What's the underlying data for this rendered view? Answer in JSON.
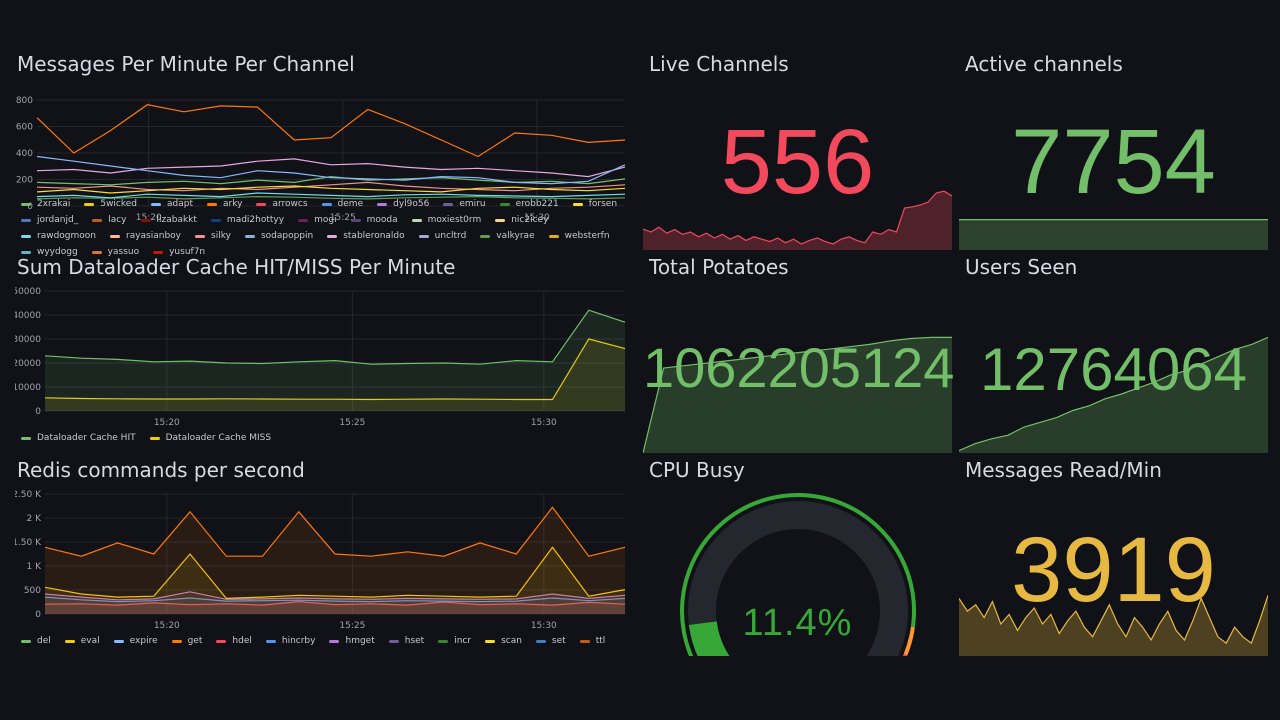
{
  "colors": {
    "bg": "#111217",
    "grid": "#24262e",
    "axis_text": "#a0a2ad",
    "red": "#f2495c",
    "green": "#73bf69",
    "yellow": "#f2cc0c",
    "gold": "#e8b942",
    "gauge_track": "#25272e",
    "gauge_green": "#37a837"
  },
  "panels": {
    "messages": {
      "title": "Messages Per Minute Per Channel",
      "y_ticks": [
        "800",
        "600",
        "400",
        "200",
        "0"
      ],
      "x_ticks": [
        "15:20",
        "15:25",
        "15:30"
      ],
      "legend": [
        {
          "name": "2xrakai",
          "color": "#73bf69"
        },
        {
          "name": "5wicked",
          "color": "#f2cc0c"
        },
        {
          "name": "adapt",
          "color": "#8ab8ff"
        },
        {
          "name": "arky",
          "color": "#ff780a"
        },
        {
          "name": "arrowcs",
          "color": "#f2495c"
        },
        {
          "name": "deme",
          "color": "#5794f2"
        },
        {
          "name": "dyl9o56",
          "color": "#b877d9"
        },
        {
          "name": "emiru",
          "color": "#705da0"
        },
        {
          "name": "erobb221",
          "color": "#37872d"
        },
        {
          "name": "forsen",
          "color": "#fade2a"
        },
        {
          "name": "jordanjd_",
          "color": "#447ebc"
        },
        {
          "name": "lacy",
          "color": "#c15c17"
        },
        {
          "name": "lizabakkt",
          "color": "#890f02"
        },
        {
          "name": "madi2hottyy",
          "color": "#0a437c"
        },
        {
          "name": "mogi",
          "color": "#6d1f62"
        },
        {
          "name": "mooda",
          "color": "#584477"
        },
        {
          "name": "moxiest0rm",
          "color": "#b7dbab"
        },
        {
          "name": "nic2icey",
          "color": "#f4d598"
        },
        {
          "name": "rawdogmoon",
          "color": "#70dbed"
        },
        {
          "name": "rayasianboy",
          "color": "#f9ba8f"
        },
        {
          "name": "silky",
          "color": "#f29191"
        },
        {
          "name": "sodapoppin",
          "color": "#82b5d8"
        },
        {
          "name": "stableronaldo",
          "color": "#e5a8e2"
        },
        {
          "name": "uncltrd",
          "color": "#aea2e0"
        },
        {
          "name": "valkyrae",
          "color": "#629e51"
        },
        {
          "name": "websterfn",
          "color": "#e5ac0e"
        },
        {
          "name": "wyydogg",
          "color": "#64b0c8"
        },
        {
          "name": "yassuo",
          "color": "#e0752d"
        },
        {
          "name": "yusuf7n",
          "color": "#bf1b00"
        }
      ]
    },
    "dataloader": {
      "title": "Sum Dataloader Cache HIT/MISS Per Minute",
      "y_ticks": [
        "50000",
        "40000",
        "30000",
        "20000",
        "10000",
        "0"
      ],
      "x_ticks": [
        "15:20",
        "15:25",
        "15:30"
      ],
      "legend": [
        {
          "name": "Dataloader Cache HIT",
          "color": "#73bf69"
        },
        {
          "name": "Dataloader Cache MISS",
          "color": "#f2cc0c"
        }
      ]
    },
    "redis": {
      "title": "Redis commands per second",
      "y_ticks": [
        "2.50 K",
        "2 K",
        "1.50 K",
        "1 K",
        "500",
        "0"
      ],
      "x_ticks": [
        "15:20",
        "15:25",
        "15:30"
      ],
      "legend": [
        {
          "name": "del",
          "color": "#73bf69"
        },
        {
          "name": "eval",
          "color": "#f2cc0c"
        },
        {
          "name": "expire",
          "color": "#8ab8ff"
        },
        {
          "name": "get",
          "color": "#ff780a"
        },
        {
          "name": "hdel",
          "color": "#f2495c"
        },
        {
          "name": "hincrby",
          "color": "#5794f2"
        },
        {
          "name": "hmget",
          "color": "#b877d9"
        },
        {
          "name": "hset",
          "color": "#705da0"
        },
        {
          "name": "incr",
          "color": "#37872d"
        },
        {
          "name": "scan",
          "color": "#fade2a"
        },
        {
          "name": "set",
          "color": "#447ebc"
        },
        {
          "name": "ttl",
          "color": "#c15c17"
        }
      ]
    },
    "live_channels": {
      "title": "Live Channels",
      "value": "556",
      "color": "#f2495c"
    },
    "active_channels": {
      "title": "Active channels",
      "value": "7754",
      "color": "#73bf69"
    },
    "total_potatoes": {
      "title": "Total Potatoes",
      "value": "1062205124",
      "color": "#73bf69"
    },
    "users_seen": {
      "title": "Users Seen",
      "value": "12764064",
      "color": "#73bf69"
    },
    "cpu_busy": {
      "title": "CPU Busy",
      "value": "11.4%",
      "percent": 11.4
    },
    "messages_read": {
      "title": "Messages Read/Min",
      "value": "3919",
      "color": "#e8b942"
    }
  },
  "chart_data": [
    {
      "type": "line",
      "title": "Messages Per Minute Per Channel",
      "x": [
        "15:16",
        "15:17",
        "15:18",
        "15:19",
        "15:20",
        "15:21",
        "15:22",
        "15:23",
        "15:24",
        "15:25",
        "15:26",
        "15:27",
        "15:28",
        "15:29",
        "15:30",
        "15:31",
        "15:32"
      ],
      "ylim": [
        0,
        900
      ],
      "series": [
        {
          "name": "arky",
          "color": "#ff780a",
          "values": [
            750,
            450,
            640,
            860,
            800,
            850,
            840,
            560,
            580,
            820,
            700,
            560,
            420,
            620,
            600,
            540,
            560
          ]
        },
        {
          "name": "adapt",
          "color": "#8ab8ff",
          "values": [
            420,
            380,
            340,
            300,
            260,
            240,
            300,
            280,
            240,
            230,
            220,
            250,
            240,
            200,
            190,
            210,
            350
          ]
        },
        {
          "name": "stableronaldo",
          "color": "#e5a8e2",
          "values": [
            300,
            310,
            280,
            320,
            330,
            340,
            380,
            400,
            350,
            360,
            330,
            310,
            320,
            300,
            280,
            250,
            330
          ]
        },
        {
          "name": "2xrakai",
          "color": "#73bf69",
          "values": [
            200,
            190,
            180,
            200,
            210,
            190,
            220,
            200,
            250,
            220,
            230,
            240,
            220,
            200,
            210,
            190,
            230
          ]
        },
        {
          "name": "forsen",
          "color": "#fade2a",
          "values": [
            120,
            140,
            110,
            130,
            150,
            140,
            160,
            170,
            150,
            140,
            130,
            120,
            150,
            160,
            140,
            130,
            150
          ]
        },
        {
          "name": "silky",
          "color": "#f29191",
          "values": [
            160,
            150,
            170,
            140,
            130,
            150,
            140,
            160,
            180,
            200,
            170,
            150,
            140,
            130,
            150,
            160,
            180
          ]
        },
        {
          "name": "rawdogmoon",
          "color": "#70dbed",
          "values": [
            80,
            90,
            70,
            100,
            90,
            80,
            110,
            100,
            90,
            80,
            95,
            100,
            90,
            85,
            80,
            90,
            100
          ]
        },
        {
          "name": "valkyrae",
          "color": "#629e51",
          "values": [
            60,
            70,
            65,
            75,
            60,
            70,
            80,
            75,
            65,
            60,
            70,
            75,
            80,
            70,
            65,
            60,
            70
          ]
        }
      ]
    },
    {
      "type": "area",
      "title": "Sum Dataloader Cache HIT/MISS Per Minute",
      "x": [
        "15:16",
        "15:17",
        "15:18",
        "15:19",
        "15:20",
        "15:21",
        "15:22",
        "15:23",
        "15:24",
        "15:25",
        "15:26",
        "15:27",
        "15:28",
        "15:29",
        "15:30",
        "15:31",
        "15:32"
      ],
      "ylim": [
        0,
        50000
      ],
      "series": [
        {
          "name": "Dataloader Cache HIT",
          "color": "#73bf69",
          "values": [
            23000,
            22000,
            21500,
            20500,
            20800,
            20000,
            19800,
            20500,
            21000,
            19500,
            19800,
            20000,
            19500,
            21000,
            20500,
            42000,
            37000
          ]
        },
        {
          "name": "Dataloader Cache MISS",
          "color": "#f2cc0c",
          "values": [
            5500,
            5200,
            5100,
            5000,
            5000,
            5100,
            5000,
            4900,
            4900,
            4800,
            4900,
            5000,
            4900,
            4800,
            4800,
            30000,
            26000
          ]
        }
      ]
    },
    {
      "type": "area",
      "title": "Redis commands per second",
      "x": [
        "15:16",
        "15:17",
        "15:18",
        "15:19",
        "15:20",
        "15:21",
        "15:22",
        "15:23",
        "15:24",
        "15:25",
        "15:26",
        "15:27",
        "15:28",
        "15:29",
        "15:30",
        "15:31",
        "15:32"
      ],
      "ylim": [
        0,
        2700
      ],
      "series": [
        {
          "name": "get",
          "color": "#ff780a",
          "values": [
            1500,
            1300,
            1600,
            1350,
            2300,
            1300,
            1300,
            2300,
            1350,
            1300,
            1400,
            1300,
            1600,
            1350,
            2400,
            1300,
            1500
          ]
        },
        {
          "name": "eval",
          "color": "#f2cc0c",
          "values": [
            600,
            450,
            380,
            400,
            1350,
            350,
            380,
            420,
            400,
            380,
            420,
            400,
            380,
            400,
            1500,
            400,
            550
          ]
        },
        {
          "name": "hmget",
          "color": "#b877d9",
          "values": [
            450,
            380,
            320,
            340,
            500,
            330,
            340,
            360,
            340,
            330,
            350,
            340,
            330,
            340,
            450,
            350,
            420
          ]
        },
        {
          "name": "hincrby",
          "color": "#5794f2",
          "values": [
            380,
            320,
            280,
            300,
            360,
            290,
            300,
            310,
            290,
            280,
            300,
            290,
            280,
            290,
            360,
            300,
            350
          ]
        },
        {
          "name": "hdel",
          "color": "#f2495c",
          "values": [
            220,
            230,
            200,
            250,
            210,
            230,
            200,
            280,
            210,
            230,
            200,
            270,
            210,
            230,
            200,
            260,
            220
          ]
        }
      ]
    }
  ]
}
